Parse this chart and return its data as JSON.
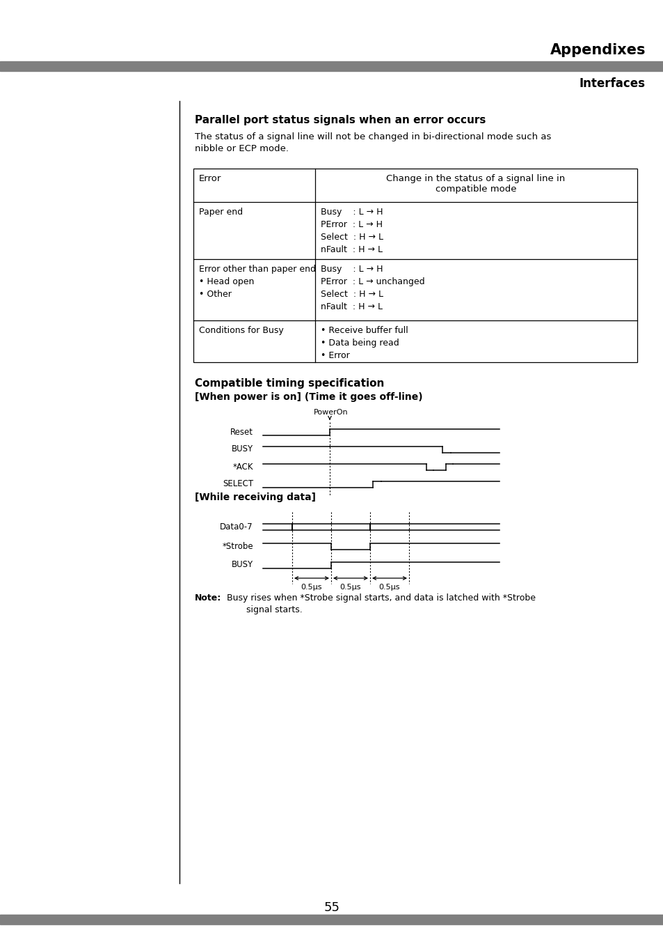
{
  "page_title": "Appendixes",
  "page_subtitle": "Interfaces",
  "page_number": "55",
  "section1_title": "Parallel port status signals when an error occurs",
  "section1_desc": "The status of a signal line will not be changed in bi-directional mode such as\nnibble or ECP mode.",
  "table_header_col1": "Error",
  "table_header_col2": "Change in the status of a signal line in\ncompatible mode",
  "table_rows": [
    {
      "col1": "Paper end",
      "col2": "Busy    : L → H\nPError  : L → H\nSelect  : H → L\nnFault  : H → L"
    },
    {
      "col1": "Error other than paper end\n• Head open\n• Other",
      "col2": "Busy    : L → H\nPError  : L → unchanged\nSelect  : H → L\nnFault  : H → L"
    },
    {
      "col1": "Conditions for Busy",
      "col2": "• Receive buffer full\n• Data being read\n• Error"
    }
  ],
  "section2_title": "Compatible timing specification",
  "section2_sub": "[When power is on] (Time it goes off-line)",
  "section3_sub": "[While receiving data]",
  "note_bold": "Note:",
  "note_text": "  Busy rises when *Strobe signal starts, and data is latched with *Strobe\n         signal starts.",
  "bg_color": "#ffffff",
  "text_color": "#000000",
  "gray_bar_color": "#7f7f7f"
}
